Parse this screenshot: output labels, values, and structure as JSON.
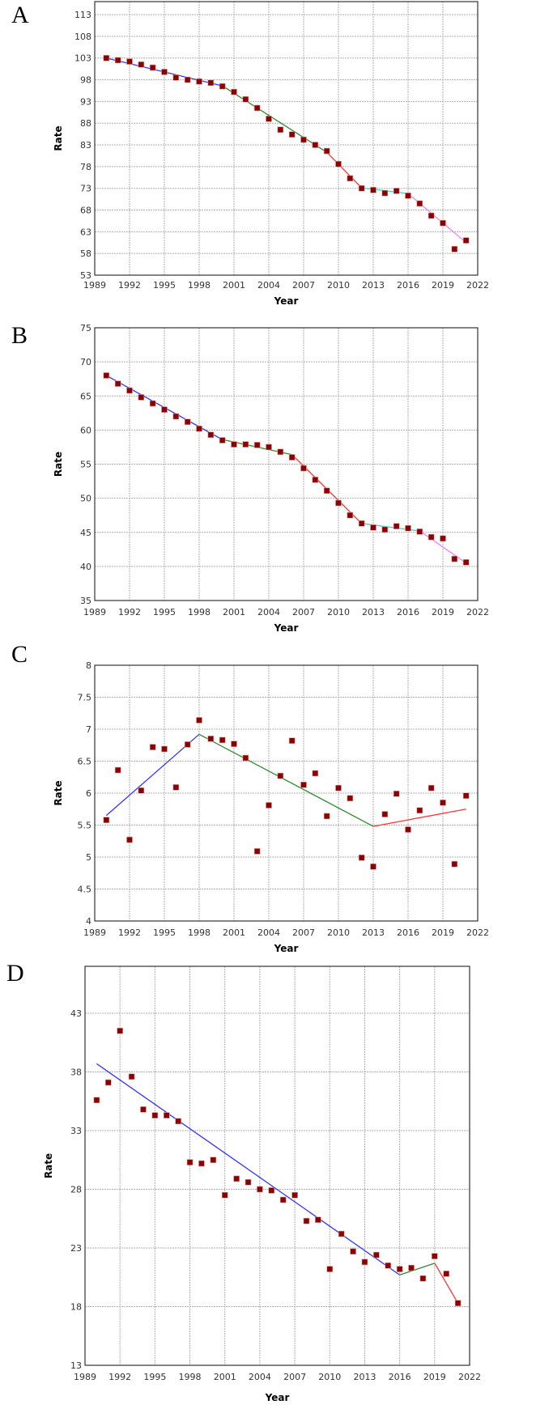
{
  "colors": {
    "point": "#8b0000",
    "grid": "#b0b0b0",
    "segments": [
      "#3333ff",
      "#2e8b2e",
      "#ff3333",
      "#33d6c8",
      "#ee88ee"
    ]
  },
  "chart_data": [
    {
      "panel": "A",
      "type": "scatter",
      "xlabel": "Year",
      "ylabel": "Rate",
      "xlim": [
        1989,
        2022
      ],
      "ylim": [
        53,
        116
      ],
      "xticks": [
        1989,
        1992,
        1995,
        1998,
        2001,
        2004,
        2007,
        2010,
        2013,
        2016,
        2019,
        2022
      ],
      "yticks": [
        53,
        58,
        63,
        68,
        73,
        78,
        83,
        88,
        93,
        98,
        103,
        108,
        113
      ],
      "x": [
        1990,
        1991,
        1992,
        1993,
        1994,
        1995,
        1996,
        1997,
        1998,
        1999,
        2000,
        2001,
        2002,
        2003,
        2004,
        2005,
        2006,
        2007,
        2008,
        2009,
        2010,
        2011,
        2012,
        2013,
        2014,
        2015,
        2016,
        2017,
        2018,
        2019,
        2020,
        2021
      ],
      "y": [
        103,
        102.5,
        102.2,
        101.5,
        100.8,
        99.8,
        98.5,
        98,
        97.6,
        97.3,
        96.5,
        95.2,
        93.5,
        91.5,
        89,
        86.5,
        85.4,
        84.2,
        83,
        81.6,
        78.6,
        75.3,
        73,
        72.6,
        71.9,
        72.4,
        71.3,
        69.5,
        66.7,
        65,
        59,
        61
      ],
      "segments": [
        {
          "x": [
            1990,
            2000
          ],
          "y": [
            103,
            96.6
          ]
        },
        {
          "x": [
            2000,
            2009
          ],
          "y": [
            96.6,
            81.3
          ]
        },
        {
          "x": [
            2009,
            2012
          ],
          "y": [
            81.3,
            73.1
          ]
        },
        {
          "x": [
            2012,
            2016
          ],
          "y": [
            73.1,
            71.8
          ]
        },
        {
          "x": [
            2016,
            2021
          ],
          "y": [
            71.8,
            60.5
          ]
        }
      ]
    },
    {
      "panel": "B",
      "type": "scatter",
      "xlabel": "Year",
      "ylabel": "Rate",
      "xlim": [
        1989,
        2022
      ],
      "ylim": [
        35,
        75
      ],
      "xticks": [
        1989,
        1992,
        1995,
        1998,
        2001,
        2004,
        2007,
        2010,
        2013,
        2016,
        2019,
        2022
      ],
      "yticks": [
        35,
        40,
        45,
        50,
        55,
        60,
        65,
        70,
        75
      ],
      "x": [
        1990,
        1991,
        1992,
        1993,
        1994,
        1995,
        1996,
        1997,
        1998,
        1999,
        2000,
        2001,
        2002,
        2003,
        2004,
        2005,
        2006,
        2007,
        2008,
        2009,
        2010,
        2011,
        2012,
        2013,
        2014,
        2015,
        2016,
        2017,
        2018,
        2019,
        2020,
        2021
      ],
      "y": [
        68,
        66.8,
        65.8,
        64.8,
        63.9,
        63,
        62,
        61.2,
        60.2,
        59.3,
        58.5,
        57.9,
        57.9,
        57.8,
        57.5,
        56.8,
        56,
        54.4,
        52.7,
        51.1,
        49.3,
        47.5,
        46.3,
        45.7,
        45.4,
        45.9,
        45.6,
        45.1,
        44.3,
        44.1,
        41.1,
        40.6
      ],
      "segments": [
        {
          "x": [
            1990,
            2000
          ],
          "y": [
            68,
            58.6
          ]
        },
        {
          "x": [
            2000,
            2006
          ],
          "y": [
            58.6,
            56.4
          ]
        },
        {
          "x": [
            2006,
            2012
          ],
          "y": [
            56.4,
            46.3
          ]
        },
        {
          "x": [
            2012,
            2017
          ],
          "y": [
            46.3,
            45.2
          ]
        },
        {
          "x": [
            2017,
            2021
          ],
          "y": [
            45.2,
            40.5
          ]
        }
      ]
    },
    {
      "panel": "C",
      "type": "scatter",
      "xlabel": "Year",
      "ylabel": "Rate",
      "xlim": [
        1989,
        2022
      ],
      "ylim": [
        4,
        8
      ],
      "xticks": [
        1989,
        1992,
        1995,
        1998,
        2001,
        2004,
        2007,
        2010,
        2013,
        2016,
        2019,
        2022
      ],
      "yticks": [
        4,
        4.5,
        5,
        5.5,
        6,
        6.5,
        7,
        7.5,
        8
      ],
      "x": [
        1990,
        1991,
        1992,
        1993,
        1994,
        1995,
        1996,
        1997,
        1998,
        1999,
        2000,
        2001,
        2002,
        2003,
        2004,
        2005,
        2006,
        2007,
        2008,
        2009,
        2010,
        2011,
        2012,
        2013,
        2014,
        2015,
        2016,
        2017,
        2018,
        2019,
        2020,
        2021
      ],
      "y": [
        5.58,
        6.36,
        5.27,
        6.04,
        6.72,
        6.69,
        6.09,
        6.76,
        7.14,
        6.85,
        6.83,
        6.77,
        6.55,
        5.09,
        5.81,
        6.27,
        6.82,
        6.13,
        6.31,
        5.64,
        6.08,
        5.92,
        4.99,
        4.85,
        5.67,
        5.99,
        5.43,
        5.73,
        6.08,
        5.85,
        4.89,
        5.96
      ],
      "segments": [
        {
          "x": [
            1990,
            1998
          ],
          "y": [
            5.65,
            6.92
          ]
        },
        {
          "x": [
            1998,
            2013
          ],
          "y": [
            6.92,
            5.48
          ]
        },
        {
          "x": [
            2013,
            2021
          ],
          "y": [
            5.48,
            5.75
          ]
        }
      ]
    },
    {
      "panel": "D",
      "type": "scatter",
      "xlabel": "Year",
      "ylabel": "Rate",
      "xlim": [
        1989,
        2022
      ],
      "ylim": [
        13,
        47
      ],
      "xticks": [
        1989,
        1992,
        1995,
        1998,
        2001,
        2004,
        2007,
        2010,
        2013,
        2016,
        2019,
        2022
      ],
      "yticks": [
        13,
        18,
        23,
        28,
        33,
        38,
        43
      ],
      "x": [
        1990,
        1991,
        1992,
        1993,
        1994,
        1995,
        1996,
        1997,
        1998,
        1999,
        2000,
        2001,
        2002,
        2003,
        2004,
        2005,
        2006,
        2007,
        2008,
        2009,
        2010,
        2011,
        2012,
        2013,
        2014,
        2015,
        2016,
        2017,
        2018,
        2019,
        2020,
        2021
      ],
      "y": [
        35.6,
        37.1,
        41.5,
        37.6,
        34.8,
        34.3,
        34.3,
        33.8,
        30.3,
        30.2,
        30.5,
        27.5,
        28.9,
        28.6,
        28.0,
        27.9,
        27.1,
        27.5,
        25.3,
        25.4,
        21.2,
        24.2,
        22.7,
        21.8,
        22.4,
        21.5,
        21.2,
        21.3,
        20.4,
        22.3,
        20.8,
        18.3
      ],
      "segments": [
        {
          "x": [
            1990,
            2016
          ],
          "y": [
            38.7,
            20.7
          ]
        },
        {
          "x": [
            2016,
            2019
          ],
          "y": [
            20.7,
            21.7
          ]
        },
        {
          "x": [
            2019,
            2021
          ],
          "y": [
            21.7,
            18.3
          ]
        }
      ]
    }
  ]
}
